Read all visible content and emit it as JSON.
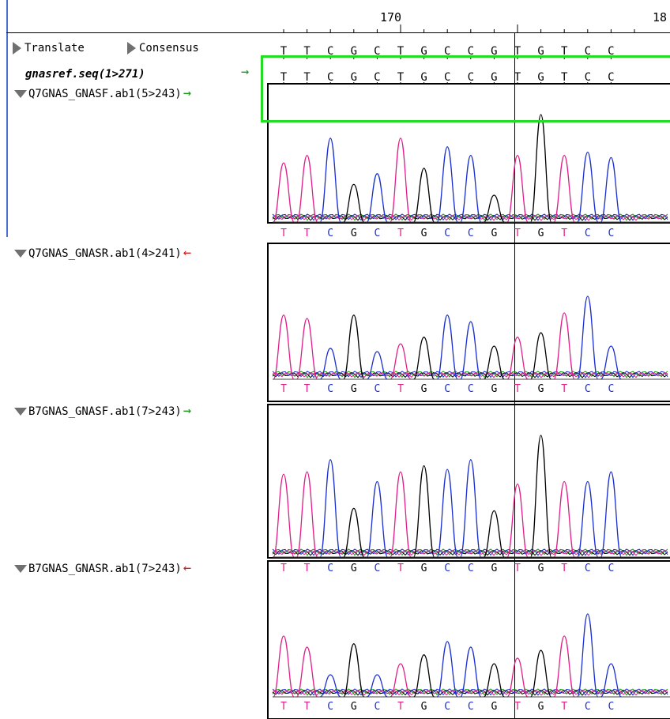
{
  "ruler": {
    "labels": [
      "170",
      "18"
    ]
  },
  "toolbar": {
    "translate_label": "Translate",
    "consensus_label": "Consensus"
  },
  "reference": {
    "label": "gnasref.seq(1>271)"
  },
  "consensus_bases": [
    "T",
    "T",
    "C",
    "G",
    "C",
    "T",
    "G",
    "C",
    "C",
    "G",
    "T",
    "G",
    "T",
    "C",
    "C"
  ],
  "reference_bases": [
    "T",
    "T",
    "C",
    "G",
    "C",
    "T",
    "G",
    "C",
    "C",
    "G",
    "T",
    "G",
    "T",
    "C",
    "C"
  ],
  "tracks": [
    {
      "label": "Q7GNAS_GNASF.ab1(5>243)",
      "direction": "forward",
      "arrow": "→",
      "bases": [
        "T",
        "T",
        "C",
        "G",
        "C",
        "T",
        "G",
        "C",
        "C",
        "G",
        "T",
        "G",
        "T",
        "C",
        "C"
      ],
      "peaks": [
        0.55,
        0.62,
        0.78,
        0.35,
        0.45,
        0.78,
        0.5,
        0.7,
        0.62,
        0.25,
        0.62,
        1.0,
        0.62,
        0.65,
        0.6
      ]
    },
    {
      "label": "Q7GNAS_GNASR.ab1(4>241)",
      "direction": "reverse",
      "arrow": "←",
      "bases": [
        "T",
        "T",
        "C",
        "G",
        "C",
        "T",
        "G",
        "C",
        "C",
        "G",
        "T",
        "G",
        "T",
        "C",
        "C"
      ],
      "peaks": [
        0.58,
        0.55,
        0.28,
        0.58,
        0.25,
        0.32,
        0.38,
        0.58,
        0.52,
        0.3,
        0.38,
        0.42,
        0.6,
        0.75,
        0.3
      ]
    },
    {
      "label": "B7GNAS_GNASF.ab1(7>243)",
      "direction": "forward",
      "arrow": "→",
      "bases": [
        "T",
        "T",
        "C",
        "G",
        "C",
        "T",
        "G",
        "C",
        "C",
        "G",
        "T",
        "G",
        "T",
        "C",
        "C"
      ],
      "peaks": [
        0.68,
        0.7,
        0.8,
        0.4,
        0.62,
        0.7,
        0.75,
        0.72,
        0.8,
        0.38,
        0.6,
        1.0,
        0.62,
        0.62,
        0.7
      ]
    },
    {
      "label": "B7GNAS_GNASR.ab1(7>243)",
      "direction": "reverse",
      "arrow": "←",
      "bases": [
        "T",
        "T",
        "C",
        "G",
        "C",
        "T",
        "G",
        "C",
        "C",
        "G",
        "T",
        "G",
        "T",
        "C",
        "C"
      ],
      "peaks": [
        0.55,
        0.45,
        0.2,
        0.48,
        0.2,
        0.3,
        0.38,
        0.5,
        0.45,
        0.3,
        0.35,
        0.42,
        0.55,
        0.75,
        0.3
      ]
    }
  ],
  "colors": {
    "T": "#e0208a",
    "C": "#1a2fd0",
    "G": "#000000",
    "A": "#14a014",
    "forward_arrow": "#1a9a1a",
    "reverse_arrow": "#d42020",
    "highlight": "#22dd22"
  }
}
